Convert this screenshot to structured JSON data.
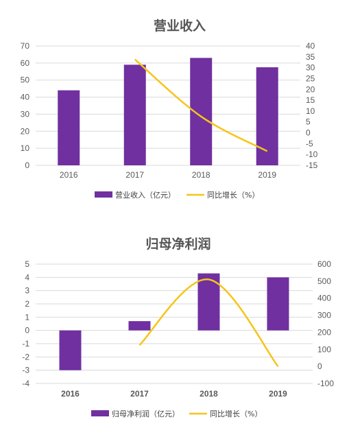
{
  "chart_data": [
    {
      "type": "bar",
      "title": "营业收入",
      "categories": [
        "2016",
        "2017",
        "2018",
        "2019"
      ],
      "series": [
        {
          "name": "营业收入（亿元）",
          "values": [
            44,
            59,
            63,
            57.5
          ],
          "axis": "left",
          "color": "#7030a0"
        },
        {
          "name": "同比增长（%）",
          "type": "line",
          "values": [
            null,
            33.8,
            7.5,
            -8.5
          ],
          "axis": "right",
          "color": "#f5c518"
        }
      ],
      "ylim": [
        0,
        70
      ],
      "yticks": [
        "0",
        "10",
        "20",
        "30",
        "40",
        "50",
        "60",
        "70"
      ],
      "y2lim": [
        -15,
        40
      ],
      "y2ticks": [
        "-15",
        "-10",
        "-5",
        "0",
        "5",
        "10",
        "15",
        "20",
        "25",
        "30",
        "35",
        "40"
      ],
      "grid": true,
      "legend_position": "bottom"
    },
    {
      "type": "bar",
      "title": "归母净利润",
      "categories": [
        "2016",
        "2017",
        "2018",
        "2019"
      ],
      "series": [
        {
          "name": "归母净利润（亿元）",
          "values": [
            -3,
            0.7,
            4.3,
            4
          ],
          "axis": "left",
          "color": "#7030a0"
        },
        {
          "name": "同比增长（%）",
          "type": "line",
          "values": [
            null,
            125,
            510,
            0
          ],
          "axis": "right",
          "color": "#f5c518"
        }
      ],
      "ylim": [
        -4,
        5
      ],
      "yticks": [
        "-4",
        "-3",
        "-2",
        "-1",
        "0",
        "1",
        "2",
        "3",
        "4",
        "5"
      ],
      "y2lim": [
        -100,
        600
      ],
      "y2ticks": [
        "-100",
        "0",
        "100",
        "200",
        "300",
        "400",
        "500",
        "600"
      ],
      "grid": true,
      "legend_position": "bottom"
    }
  ]
}
